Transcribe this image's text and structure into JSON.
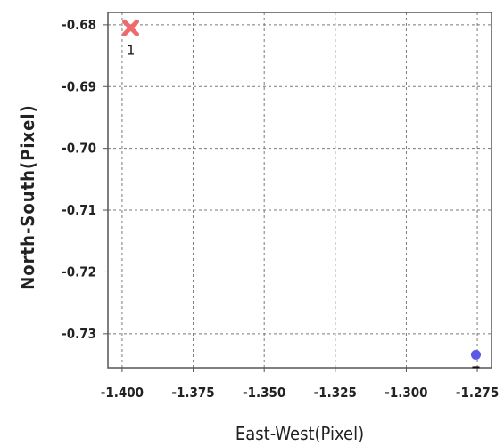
{
  "chart_data": {
    "type": "scatter",
    "title": "",
    "xlabel": "East-West(Pixel)",
    "ylabel": "North-South(Pixel)",
    "xlim": [
      -1.405,
      -1.27
    ],
    "ylim": [
      -0.7355,
      -0.678
    ],
    "grid": true,
    "legend": "none",
    "x_ticks": [
      -1.4,
      -1.375,
      -1.35,
      -1.325,
      -1.3,
      -1.275
    ],
    "x_tick_labels": [
      "-1.400",
      "-1.375",
      "-1.350",
      "-1.325",
      "-1.300",
      "-1.275"
    ],
    "y_ticks": [
      -0.68,
      -0.69,
      -0.7,
      -0.71,
      -0.72,
      -0.73
    ],
    "y_tick_labels": [
      "-0.68",
      "-0.69",
      "-0.70",
      "-0.71",
      "-0.72",
      "-0.73"
    ],
    "points": [
      {
        "x": -1.397,
        "y": -0.6805,
        "marker": "x",
        "color": "#ef6a6a",
        "label": "1"
      },
      {
        "x": -1.2755,
        "y": -0.7334,
        "marker": "circle",
        "color": "#5a5ae6",
        "label": ""
      }
    ]
  }
}
